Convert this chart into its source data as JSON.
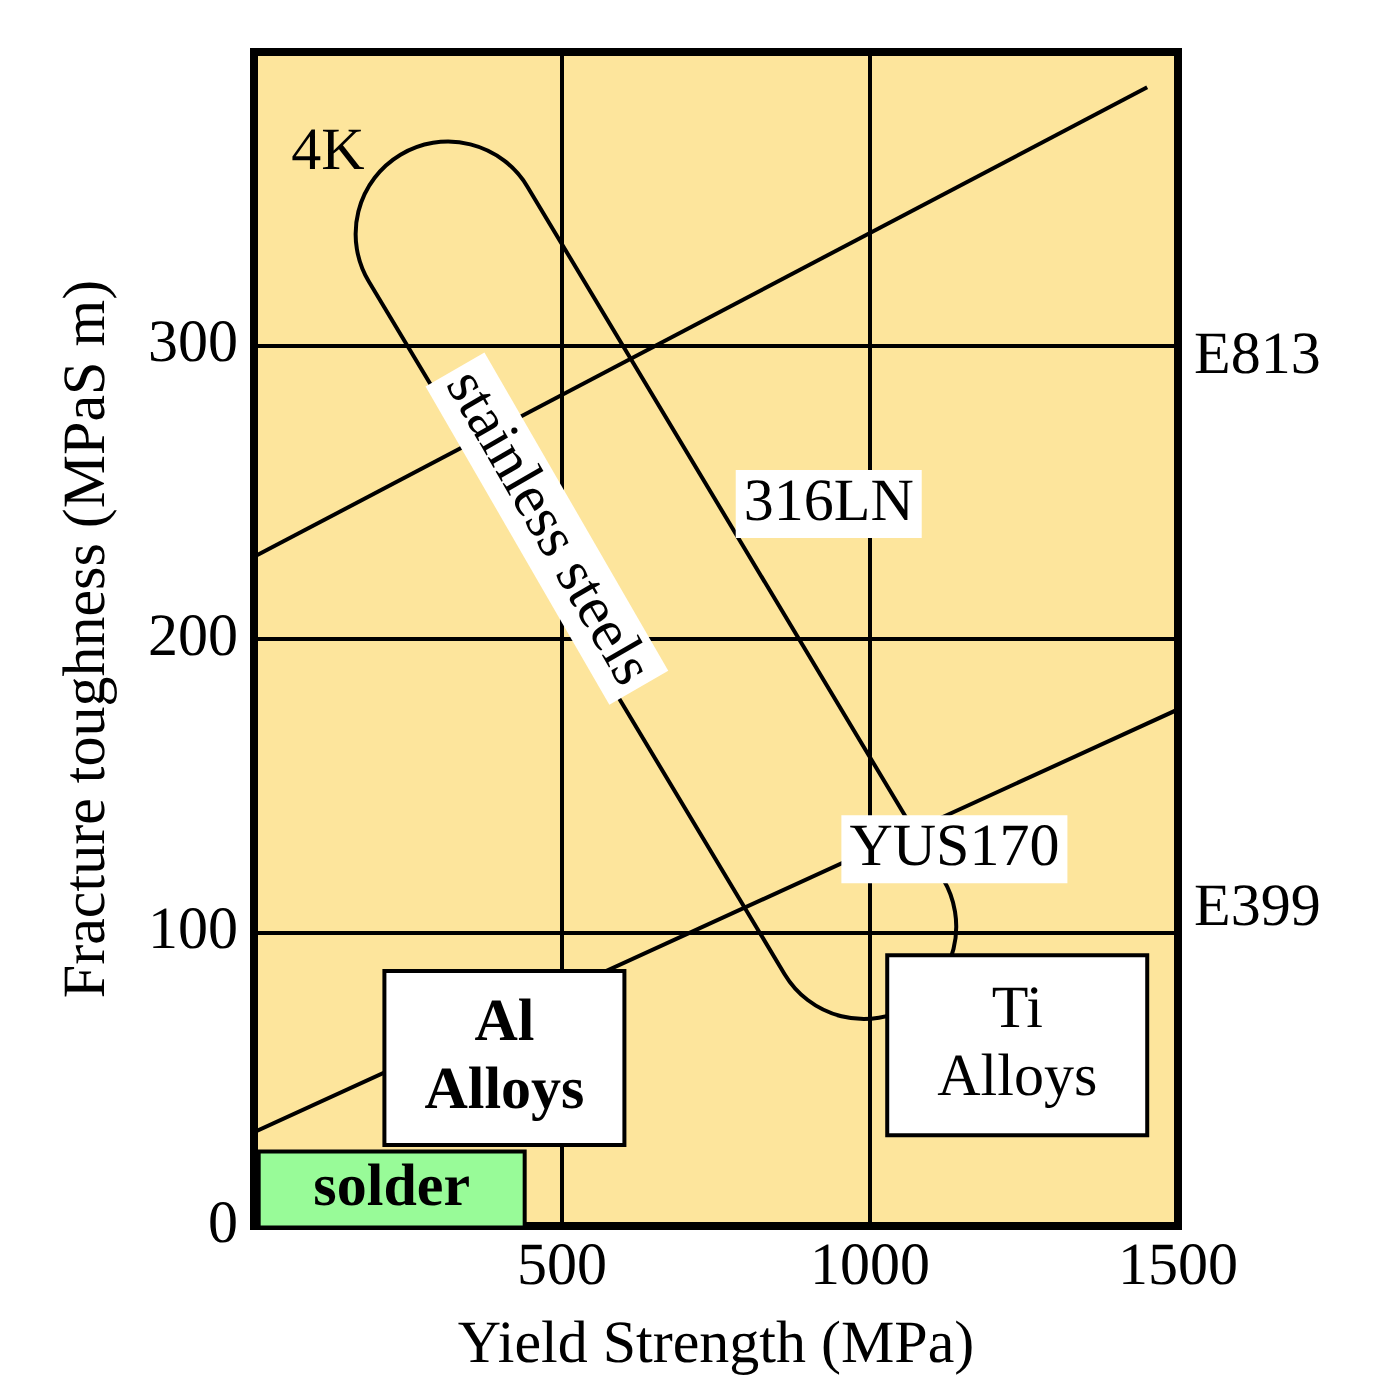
{
  "chart_data": {
    "type": "line",
    "xlabel": "Yield Strength (MPa)",
    "ylabel": "Fracture toughness (MPaS m)",
    "xlim": [
      0,
      1500
    ],
    "ylim": [
      0,
      400
    ],
    "xticks": [
      {
        "value": 0,
        "label": null
      },
      500,
      1000,
      1500
    ],
    "yticks": [
      0,
      100,
      200,
      300
    ],
    "grid": true,
    "legend": false,
    "marker": "none",
    "line_style": "solid",
    "series": [
      {
        "name": "E813",
        "color": "#000000",
        "x": [
          0,
          1450
        ],
        "values": [
          228,
          388
        ]
      },
      {
        "name": "E399",
        "color": "#000000",
        "x": [
          0,
          1500
        ],
        "values": [
          32,
          176
        ]
      }
    ],
    "annotations": [
      "4K",
      "stainless steels",
      "316LN",
      "YUS170",
      "Al Alloys",
      "Ti Alloys",
      "solder"
    ]
  }
}
